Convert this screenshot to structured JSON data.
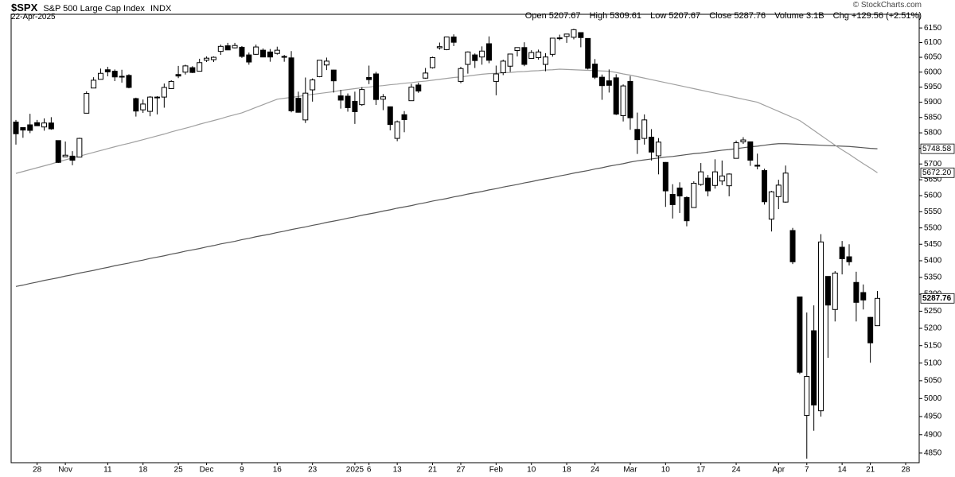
{
  "header": {
    "symbol": "$SPX",
    "name": "S&P 500 Large Cap Index",
    "exchange": "INDX",
    "date": "22-Apr-2025",
    "fields": [
      "Open",
      "High",
      "Low",
      "Close",
      "Volume",
      "Chg"
    ],
    "volume": "3.1B",
    "change": "+129.56 (+2.51%)",
    "credit": "© StockCharts.com"
  },
  "chart_data": {
    "type": "candlestick",
    "log_scale": true,
    "grid": false,
    "ylim": [
      4824,
      6197
    ],
    "yticks": [
      4850,
      4900,
      4950,
      5000,
      5050,
      5100,
      5150,
      5200,
      5250,
      5300,
      5350,
      5400,
      5450,
      5500,
      5550,
      5600,
      5650,
      5700,
      5750,
      5800,
      5850,
      5900,
      5950,
      6000,
      6050,
      6100,
      6150
    ],
    "categories": [
      null,
      null,
      null,
      "28",
      null,
      null,
      null,
      "Nov",
      null,
      null,
      null,
      null,
      null,
      "11",
      null,
      null,
      null,
      null,
      "18",
      null,
      null,
      null,
      null,
      "25",
      null,
      null,
      null,
      "Dec",
      null,
      null,
      null,
      null,
      "9",
      null,
      null,
      null,
      null,
      "16",
      null,
      null,
      null,
      null,
      "23",
      null,
      null,
      null,
      null,
      null,
      "2025",
      null,
      "6",
      null,
      null,
      null,
      "13",
      null,
      null,
      null,
      null,
      "21",
      null,
      null,
      null,
      "27",
      null,
      null,
      null,
      null,
      "Feb",
      null,
      null,
      null,
      null,
      "10",
      null,
      null,
      null,
      null,
      "18",
      null,
      null,
      null,
      "24",
      null,
      null,
      null,
      null,
      "Mar",
      null,
      null,
      null,
      null,
      "10",
      null,
      null,
      null,
      null,
      "17",
      null,
      null,
      null,
      null,
      "24",
      null,
      null,
      null,
      null,
      null,
      "Apr",
      null,
      null,
      null,
      "7",
      null,
      null,
      null,
      null,
      "14",
      null,
      null,
      null,
      "21",
      null,
      null,
      null,
      null,
      "28"
    ],
    "open": [
      5835,
      5817,
      5826,
      5833,
      5819,
      5832,
      5775,
      5723,
      5725,
      5722,
      5864,
      5947,
      5976,
      6008,
      6003,
      5986,
      5989,
      5912,
      5875,
      5870,
      5917,
      5917,
      5945,
      5992,
      6000,
      6015,
      6003,
      6040,
      6042,
      6070,
      6089,
      6082,
      6084,
      6058,
      6060,
      6074,
      6068,
      6063,
      6053,
      6048,
      5913,
      5842,
      5941,
      5985,
      6024,
      6007,
      5921,
      5920,
      5903,
      5892,
      5982,
      5994,
      5910,
      5885,
      5782,
      5859,
      5905,
      5957,
      5980,
      6015,
      6082,
      6076,
      6119,
      5969,
      6026,
      6058,
      6051,
      6096,
      5969,
      5998,
      6020,
      6073,
      6083,
      6046,
      6049,
      6026,
      6060,
      6116,
      6121,
      6118,
      6134,
      6114,
      6027,
      5983,
      5971,
      5981,
      5856,
      5969,
      5811,
      5782,
      5786,
      5726,
      5705,
      5604,
      5624,
      5594,
      5563,
      5635,
      5655,
      5632,
      5646,
      5631,
      5718,
      5771,
      5771,
      5696,
      5679,
      5527,
      5597,
      5580,
      5492,
      5292,
      4953,
      5193,
      4966,
      5353,
      5255,
      5441,
      5412,
      5335,
      5305,
      5232,
      5207.67,
      null,
      null,
      null,
      null
    ],
    "high": [
      5842,
      5817,
      5862,
      5842,
      5847,
      5851,
      5775,
      5772,
      5741,
      5784,
      5936,
      5983,
      6012,
      6018,
      6009,
      6008,
      5993,
      5915,
      5909,
      5920,
      5920,
      5962,
      5973,
      6021,
      6025,
      6020,
      6045,
      6053,
      6053,
      6093,
      6099,
      6099,
      6088,
      6066,
      6093,
      6080,
      6078,
      6086,
      6058,
      6071,
      5935,
      5982,
      5979,
      6040,
      6049,
      6008,
      5941,
      5929,
      5935,
      5950,
      6022,
      6001,
      5927,
      5886,
      5840,
      5871,
      5961,
      5965,
      6014,
      6052,
      6100,
      6119,
      6128,
      6018,
      6070,
      6063,
      6087,
      6121,
      6022,
      6042,
      6062,
      6084,
      6101,
      6074,
      6076,
      6064,
      6116,
      6127,
      6129,
      6147,
      6134,
      6115,
      6044,
      5992,
      6009,
      5993,
      5959,
      5987,
      5866,
      5860,
      5812,
      5783,
      5706,
      5636,
      5642,
      5598,
      5645,
      5703,
      5665,
      5715,
      5711,
      5670,
      5775,
      5786,
      5771,
      5733,
      5685,
      5615,
      5650,
      5695,
      5500,
      5292,
      5246,
      5267,
      5481,
      5353,
      5369,
      5460,
      5450,
      5367,
      5329,
      5233,
      5309.61,
      null,
      null,
      null,
      null
    ],
    "low": [
      5762,
      5784,
      5799,
      5823,
      5807,
      5810,
      5703,
      5723,
      5696,
      5722,
      5864,
      5947,
      5976,
      5986,
      5970,
      5965,
      5946,
      5853,
      5865,
      5854,
      5860,
      5882,
      5944,
      5980,
      5992,
      5997,
      6003,
      6034,
      6034,
      6058,
      6075,
      6080,
      6048,
      6025,
      6058,
      6050,
      6035,
      6059,
      6035,
      5867,
      5866,
      5832,
      5902,
      5983,
      6007,
      5932,
      5879,
      5869,
      5829,
      5888,
      5960,
      5891,
      5874,
      5808,
      5773,
      5802,
      5905,
      5931,
      5978,
      6012,
      6076,
      6074,
      6088,
      5963,
      5995,
      6014,
      6025,
      6030,
      5923,
      5990,
      6001,
      6053,
      6020,
      6046,
      6042,
      6003,
      6052,
      6108,
      6099,
      6111,
      6084,
      6009,
      5977,
      5908,
      5932,
      5858,
      5837,
      5810,
      5732,
      5762,
      5711,
      5667,
      5565,
      5529,
      5546,
      5505,
      5563,
      5631,
      5598,
      5622,
      5633,
      5598,
      5718,
      5764,
      5694,
      5683,
      5572,
      5489,
      5558,
      5578,
      5390,
      5069,
      4835,
      4911,
      4950,
      5115,
      5220,
      5359,
      5386,
      5220,
      5255,
      5101,
      5207.67,
      null,
      null,
      null,
      null
    ],
    "close": [
      5797,
      5809,
      5808,
      5823,
      5832,
      5813,
      5705,
      5728,
      5712,
      5782,
      5929,
      5973,
      5996,
      6001,
      5984,
      5985,
      5949,
      5871,
      5894,
      5917,
      5917,
      5949,
      5969,
      5987,
      6021,
      5999,
      6032,
      6047,
      6050,
      6087,
      6075,
      6090,
      6053,
      6034,
      6085,
      6051,
      6051,
      6074,
      6050,
      5872,
      5867,
      5930,
      5974,
      6040,
      6037,
      5971,
      5907,
      5882,
      5869,
      5942,
      5975,
      5909,
      5918,
      5827,
      5836,
      5843,
      5950,
      5937,
      5997,
      6049,
      6086,
      6119,
      6101,
      6012,
      6068,
      6039,
      6071,
      6040,
      5994,
      6037,
      6061,
      6083,
      6026,
      6066,
      6068,
      6051,
      6115,
      6114,
      6129,
      6144,
      6117,
      6013,
      5983,
      5955,
      5956,
      5861,
      5954,
      5849,
      5778,
      5842,
      5738,
      5770,
      5615,
      5572,
      5599,
      5522,
      5639,
      5675,
      5615,
      5675,
      5662,
      5668,
      5768,
      5777,
      5712,
      5693,
      5581,
      5612,
      5633,
      5671,
      5397,
      5074,
      5062,
      4982,
      5457,
      5268,
      5363,
      5406,
      5397,
      5276,
      5283,
      5158,
      5287.76,
      null,
      null,
      null,
      null
    ],
    "overlays": [
      {
        "color": "#555555",
        "values": [
          5323,
          5327,
          5332,
          5336,
          5341,
          5345,
          5349,
          5354,
          5358,
          5363,
          5367,
          5371,
          5376,
          5380,
          5385,
          5389,
          5393,
          5398,
          5402,
          5407,
          5411,
          5415,
          5420,
          5424,
          5429,
          5433,
          5437,
          5442,
          5446,
          5451,
          5455,
          5459,
          5464,
          5468,
          5473,
          5477,
          5481,
          5486,
          5490,
          5495,
          5499,
          5503,
          5508,
          5512,
          5517,
          5521,
          5525,
          5530,
          5534,
          5539,
          5543,
          5547,
          5552,
          5556,
          5561,
          5565,
          5569,
          5574,
          5578,
          5583,
          5587,
          5591,
          5596,
          5600,
          5605,
          5609,
          5613,
          5618,
          5622,
          5627,
          5631,
          5635,
          5640,
          5644,
          5649,
          5653,
          5657,
          5662,
          5666,
          5671,
          5675,
          5679,
          5684,
          5688,
          5693,
          5697,
          5701,
          5706,
          5710,
          5713,
          5716,
          5719,
          5722,
          5724,
          5727,
          5730,
          5733,
          5735,
          5738,
          5741,
          5744,
          5746,
          5749,
          5752,
          5755,
          5757,
          5760,
          5763,
          5765,
          5765,
          5764,
          5763,
          5762,
          5761,
          5760,
          5759,
          5758,
          5757,
          5756,
          5754,
          5752,
          5750,
          5748.58,
          null,
          null,
          null,
          null
        ]
      },
      {
        "color": "#a0a0a0",
        "values": [
          5670,
          5676,
          5682,
          5688,
          5694,
          5700,
          5707,
          5713,
          5719,
          5725,
          5731,
          5737,
          5743,
          5749,
          5755,
          5761,
          5766,
          5772,
          5778,
          5784,
          5790,
          5796,
          5803,
          5809,
          5815,
          5821,
          5828,
          5834,
          5840,
          5846,
          5853,
          5859,
          5865,
          5874,
          5883,
          5892,
          5901,
          5910,
          5913,
          5916,
          5919,
          5923,
          5926,
          5929,
          5932,
          5935,
          5939,
          5942,
          5945,
          5948,
          5950,
          5953,
          5955,
          5958,
          5960,
          5963,
          5965,
          5968,
          5970,
          5973,
          5976,
          5979,
          5982,
          5984,
          5987,
          5990,
          5993,
          5995,
          5996,
          5998,
          5999,
          6001,
          6002,
          6004,
          6005,
          6007,
          6008,
          6010,
          6009,
          6008,
          6007,
          6006,
          6005,
          6004,
          6003,
          5999,
          5994,
          5990,
          5985,
          5980,
          5975,
          5970,
          5965,
          5960,
          5955,
          5950,
          5945,
          5940,
          5935,
          5930,
          5925,
          5920,
          5915,
          5910,
          5905,
          5900,
          5890,
          5880,
          5870,
          5860,
          5850,
          5840,
          5824,
          5808,
          5792,
          5776,
          5760,
          5745,
          5731,
          5716,
          5701,
          5687,
          5672.2,
          null,
          null,
          null,
          null
        ],
        "value_labels": [
          null,
          null,
          null,
          null,
          null,
          null,
          null,
          null,
          null,
          null,
          null,
          null,
          null,
          null,
          null,
          null,
          null,
          null,
          null,
          null,
          null,
          null,
          null,
          null,
          null,
          null,
          null,
          null,
          null,
          null,
          null,
          null,
          null,
          null,
          null,
          null,
          null,
          null,
          null,
          null,
          null,
          null,
          null,
          null,
          null,
          null,
          null,
          null,
          null,
          null,
          null,
          null,
          null,
          null,
          null,
          null,
          null,
          null,
          null,
          null,
          null,
          null,
          null,
          null,
          null,
          null,
          null,
          null,
          null,
          null,
          null,
          null,
          null,
          null,
          null,
          null,
          null,
          null,
          null,
          null,
          null,
          null,
          null,
          null,
          null,
          null,
          null,
          null,
          null,
          null,
          null,
          null,
          null,
          null,
          null,
          null,
          null,
          null,
          null,
          null,
          null,
          null,
          null,
          null,
          null,
          null,
          null,
          null,
          null,
          null,
          null,
          null,
          null,
          null,
          null,
          null,
          null,
          null,
          null,
          null,
          null,
          null,
          "5672.20",
          null,
          null,
          null,
          null
        ]
      }
    ]
  }
}
